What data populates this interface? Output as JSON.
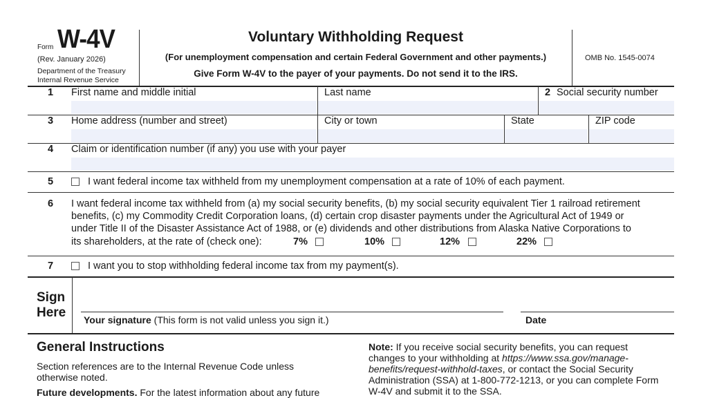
{
  "header": {
    "form_word": "Form",
    "form_number": "W-4V",
    "revision": "(Rev. January 2026)",
    "dept": "Department of the Treasury",
    "irs": "Internal Revenue Service",
    "title": "Voluntary Withholding Request",
    "subtitle": "(For unemployment compensation and certain Federal Government and other payments.)",
    "instruction": "Give Form W-4V to the payer of your payments. Do not send it to the IRS.",
    "omb": "OMB No. 1545-0074"
  },
  "fields": {
    "line1_num": "1",
    "first_name": "First name and middle initial",
    "last_name": "Last name",
    "line2_num": "2",
    "ssn": "Social security number",
    "line3_num": "3",
    "address": "Home address (number and street)",
    "city": "City or town",
    "state": "State",
    "zip": "ZIP code",
    "line4_num": "4",
    "claim": "Claim or identification number (if any) you use with your payer"
  },
  "lines": {
    "line5_num": "5",
    "line5": "I want federal income tax withheld from my unemployment compensation at a rate of 10% of each payment.",
    "line6_num": "6",
    "line6": [
      "I want federal income tax withheld from (a) my social security benefits, (b) my social security equivalent Tier 1 railroad retirement",
      "benefits, (c) my Commodity Credit Corporation loans, (d) certain crop disaster payments under the Agricultural Act of 1949 or",
      "under Title II of the Disaster Assistance Act of 1988, or (e) dividends and other distributions from Alaska Native Corporations to",
      "its shareholders, at the rate of (check one):"
    ],
    "rates": [
      "7%",
      "10%",
      "12%",
      "22%"
    ],
    "line7_num": "7",
    "line7": "I want you to stop withholding federal income tax from my payment(s)."
  },
  "sign": {
    "sign": "Sign",
    "here": "Here",
    "sig_bold": "Your signature",
    "sig_note": " (This form is not valid unless you sign it.)",
    "date": "Date"
  },
  "instructions": {
    "heading": "General Instructions",
    "p1": [
      "Section references are to the Internal Revenue Code unless",
      "otherwise noted."
    ],
    "fd_bold": "Future developments.",
    "fd": " For the latest information about any future",
    "note_bold": "Note:",
    "note": [
      " If you receive social security benefits, you can request",
      "changes to your withholding at ",
      "https://www.ssa.gov/manage-",
      "benefits/request-withhold-taxes",
      ", or contact the Social Security",
      "Administration (SSA) at 1-800-772-1213, or you can complete Form",
      "W-4V and submit it to the SSA."
    ]
  }
}
